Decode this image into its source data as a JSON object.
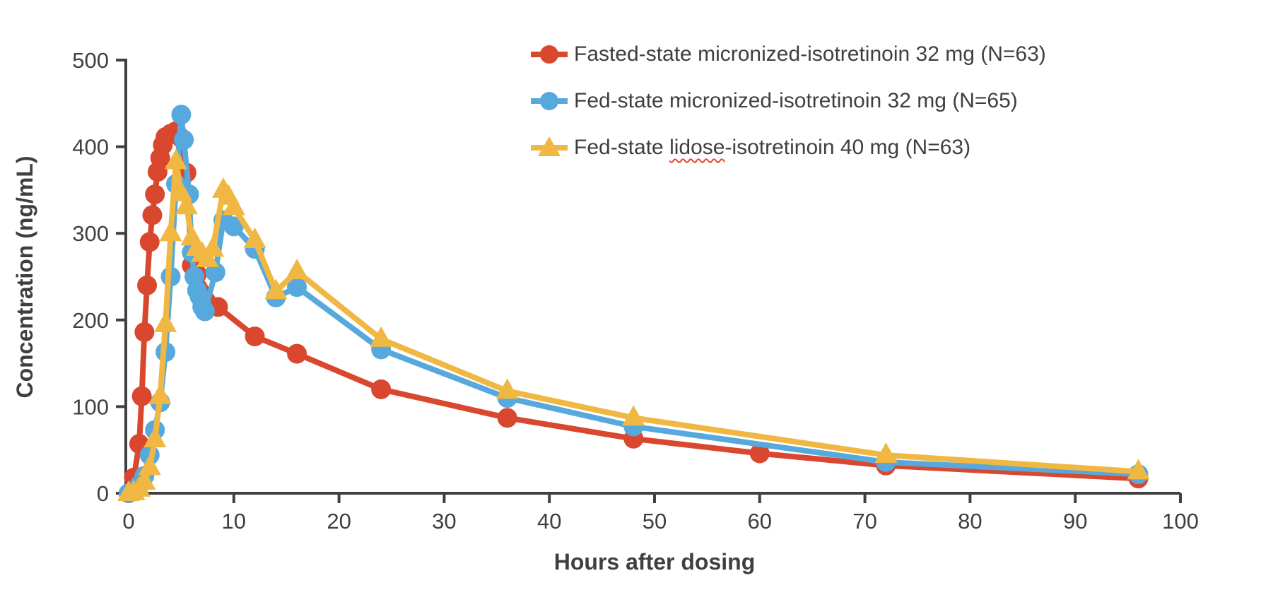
{
  "figure": {
    "background": "#ffffff",
    "axis_color": "#404040",
    "text_color": "#3f3f3f",
    "spellcheck_underline_color": "#e8442c"
  },
  "legend": {
    "items": [
      {
        "label": "Fasted-state micronized-isotretinoin 32 mg (N=63)",
        "marker": "circle",
        "color": "#d9482e"
      },
      {
        "label": "Fed-state micronized-isotretinoin 32 mg (N=65)",
        "marker": "circle",
        "color": "#57a9dd"
      },
      {
        "label": "Fed-state lidose-isotretinoin 40 mg (N=63)",
        "marker": "triangle",
        "color": "#f0b843",
        "parts": {
          "prefix": "Fed-state ",
          "word": "lidose",
          "suffix": "-isotretinoin 40 mg (N=63)"
        },
        "misspelled_word_underlined": true
      }
    ]
  },
  "chart_data": {
    "type": "line",
    "title": "",
    "xlabel": "Hours after dosing",
    "ylabel": "Concentration (ng/mL)",
    "xlim": [
      0,
      100
    ],
    "ylim": [
      0,
      500
    ],
    "xticks": [
      0,
      10,
      20,
      30,
      40,
      50,
      60,
      70,
      80,
      90,
      100
    ],
    "yticks": [
      0,
      100,
      200,
      300,
      400,
      500
    ],
    "grid": false,
    "legend_position": "upper-center",
    "series": [
      {
        "name": "Fasted-state micronized-isotretinoin 32 mg (N=63)",
        "color": "#d9482e",
        "marker": "circle",
        "points": [
          [
            0,
            0
          ],
          [
            0.5,
            18
          ],
          [
            1,
            57
          ],
          [
            1.25,
            112
          ],
          [
            1.5,
            186
          ],
          [
            1.75,
            240
          ],
          [
            2,
            290
          ],
          [
            2.25,
            321
          ],
          [
            2.5,
            345
          ],
          [
            2.75,
            371
          ],
          [
            3,
            387
          ],
          [
            3.25,
            402
          ],
          [
            3.5,
            411
          ],
          [
            4,
            415
          ],
          [
            4.5,
            418
          ],
          [
            5,
            410
          ],
          [
            5.5,
            370
          ],
          [
            6,
            263
          ],
          [
            6.5,
            253
          ],
          [
            8.5,
            215
          ],
          [
            12,
            181
          ],
          [
            16,
            161
          ],
          [
            24,
            120
          ],
          [
            36,
            87
          ],
          [
            48,
            63
          ],
          [
            60,
            46
          ],
          [
            72,
            32
          ],
          [
            96,
            17
          ]
        ]
      },
      {
        "name": "Fed-state micronized-isotretinoin 32 mg (N=65)",
        "color": "#57a9dd",
        "marker": "circle",
        "points": [
          [
            0,
            0
          ],
          [
            0.5,
            3
          ],
          [
            1,
            9
          ],
          [
            1.5,
            20
          ],
          [
            2,
            44
          ],
          [
            2.5,
            73
          ],
          [
            3,
            105
          ],
          [
            3.5,
            163
          ],
          [
            4,
            250
          ],
          [
            4.5,
            357
          ],
          [
            5,
            437
          ],
          [
            5.25,
            408
          ],
          [
            5.75,
            345
          ],
          [
            6,
            278
          ],
          [
            6.25,
            250
          ],
          [
            6.5,
            234
          ],
          [
            6.75,
            227
          ],
          [
            7,
            215
          ],
          [
            7.25,
            210
          ],
          [
            8.25,
            255
          ],
          [
            9,
            315
          ],
          [
            10,
            308
          ],
          [
            12,
            282
          ],
          [
            14,
            226
          ],
          [
            16,
            238
          ],
          [
            24,
            166
          ],
          [
            36,
            110
          ],
          [
            48,
            77
          ],
          [
            72,
            36
          ],
          [
            96,
            22
          ]
        ]
      },
      {
        "name": "Fed-state lidose-isotretinoin 40 mg (N=63)",
        "color": "#f0b843",
        "marker": "triangle",
        "points": [
          [
            0,
            0
          ],
          [
            0.5,
            1
          ],
          [
            1,
            5
          ],
          [
            1.5,
            13
          ],
          [
            2,
            30
          ],
          [
            2.5,
            62
          ],
          [
            3,
            112
          ],
          [
            3.5,
            195
          ],
          [
            4,
            300
          ],
          [
            4.5,
            383
          ],
          [
            5,
            346
          ],
          [
            5.5,
            331
          ],
          [
            6,
            295
          ],
          [
            6.5,
            283
          ],
          [
            7,
            276
          ],
          [
            7.5,
            270
          ],
          [
            8,
            282
          ],
          [
            9,
            350
          ],
          [
            9.5,
            342
          ],
          [
            10,
            330
          ],
          [
            12,
            292
          ],
          [
            14,
            233
          ],
          [
            16,
            256
          ],
          [
            24,
            178
          ],
          [
            36,
            118
          ],
          [
            48,
            87
          ],
          [
            72,
            44
          ],
          [
            96,
            25
          ]
        ]
      }
    ]
  }
}
